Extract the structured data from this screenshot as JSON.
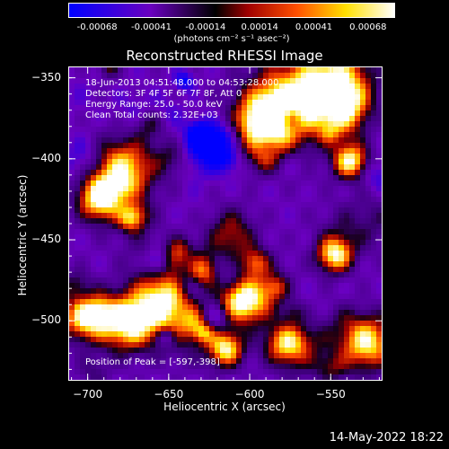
{
  "colorbar": {
    "tick_labels": [
      "-0.00068",
      "-0.00041",
      "-0.00014",
      "0.00014",
      "0.00041",
      "0.00068"
    ],
    "unit": "(photons cm⁻² s⁻¹ asec⁻²)",
    "range": [
      -0.00068,
      0.00068
    ],
    "colors": [
      "#0000ff",
      "#6a00c0",
      "#000000",
      "#a00000",
      "#ff5000",
      "#ffe000",
      "#ffffff"
    ]
  },
  "title": "Reconstructed RHESSI Image",
  "info": {
    "line1": "18-Jun-2013 04:51:48.000 to 04:53:28.000",
    "line2": "Detectors: 3F 4F 5F 6F 7F 8F, Att 0",
    "line3": "Energy Range: 25.0 - 50.0 keV",
    "line4": "Clean    Total counts: 2.32E+03"
  },
  "peak_text": "Position of Peak = [-597,-398]",
  "axes": {
    "xlabel": "Heliocentric X (arcsec)",
    "ylabel": "Heliocentric Y (arcsec)",
    "xticks": [
      "-700",
      "-650",
      "-600",
      "-550"
    ],
    "yticks": [
      "-350",
      "-400",
      "-450",
      "-500"
    ],
    "xlim": [
      -712,
      -518
    ],
    "ylim": [
      -537,
      -343
    ]
  },
  "timestamp": "14-May-2022 18:22"
}
